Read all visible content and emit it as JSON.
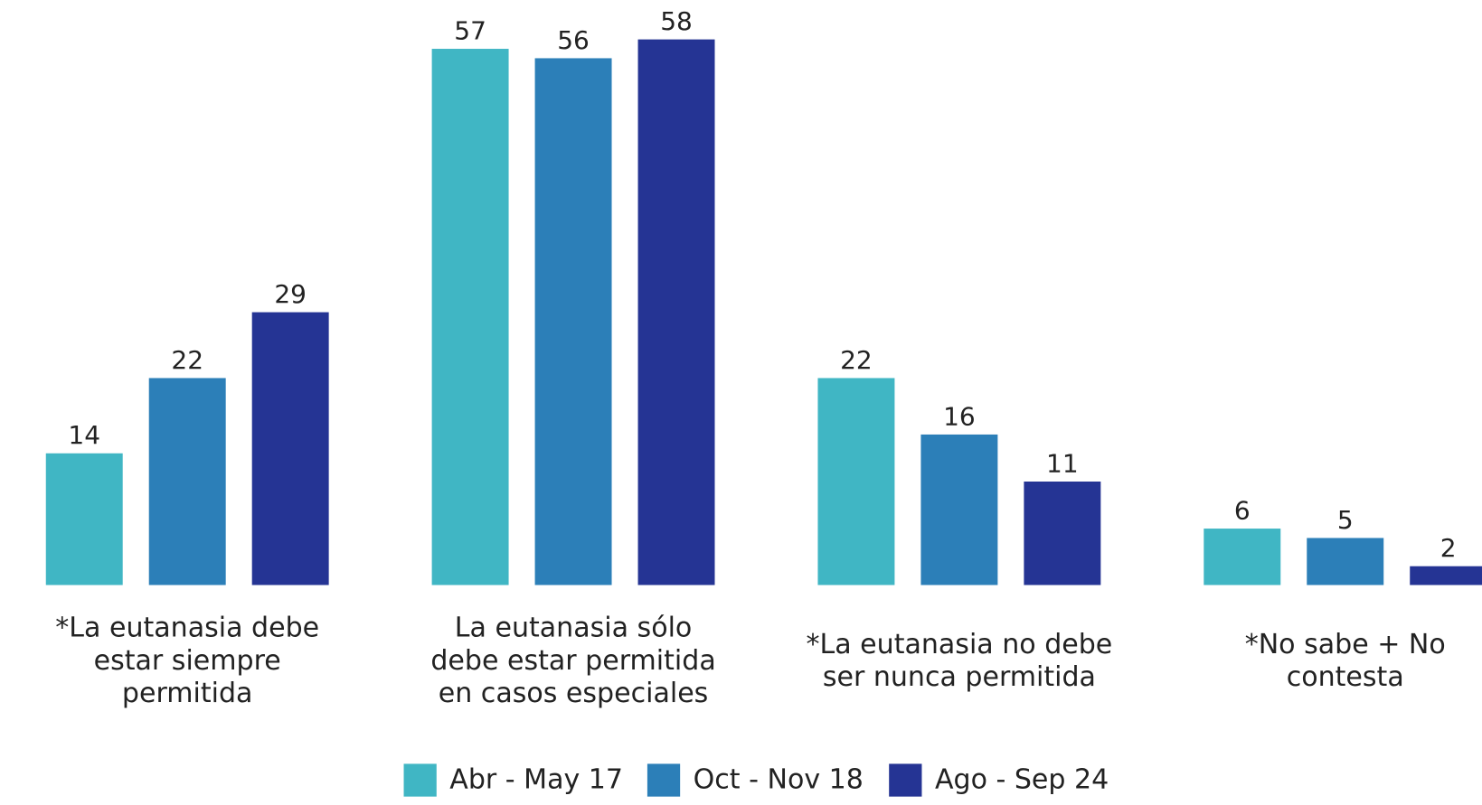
{
  "chart_data": {
    "type": "bar",
    "categories": [
      [
        "*La eutanasia debe",
        "estar siempre",
        "permitida"
      ],
      [
        "La eutanasia sólo",
        "debe estar permitida",
        "en casos especiales"
      ],
      [
        "*La eutanasia no debe",
        "ser nunca permitida"
      ],
      [
        "*No sabe + No",
        "contesta"
      ]
    ],
    "series": [
      {
        "name": "Abr - May 17",
        "color": "#40b6c4",
        "values": [
          14,
          57,
          22,
          6
        ]
      },
      {
        "name": "Oct - Nov 18",
        "color": "#2c7fb8",
        "values": [
          22,
          56,
          16,
          5
        ]
      },
      {
        "name": "Ago - Sep 24",
        "color": "#253494",
        "values": [
          29,
          58,
          11,
          2
        ]
      }
    ]
  }
}
